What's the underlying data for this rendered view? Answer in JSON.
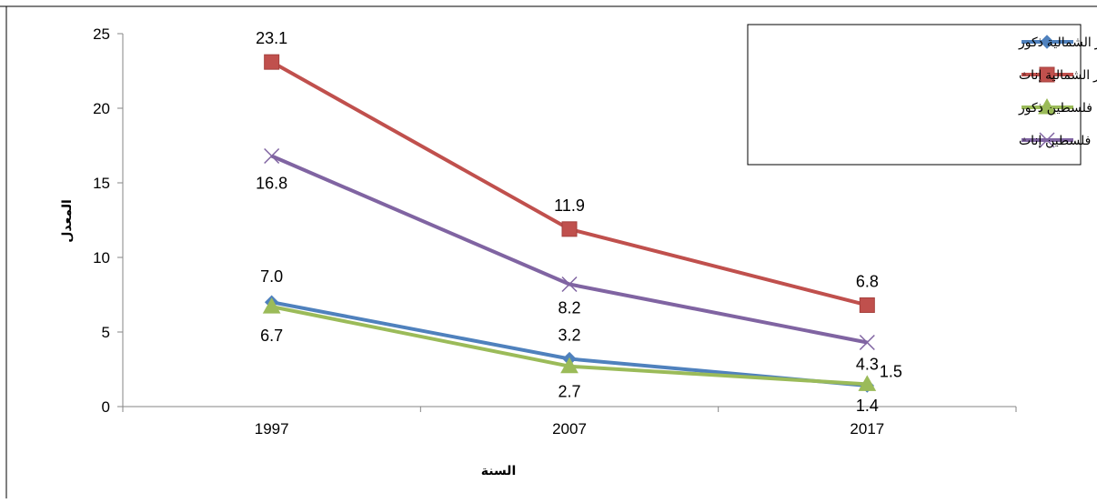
{
  "chart_data": {
    "type": "line",
    "categories": [
      "1997",
      "2007",
      "2017"
    ],
    "xlabel": "السنة",
    "ylabel": "المعدل",
    "ylim": [
      0,
      25
    ],
    "yticks": [
      "0",
      "5",
      "10",
      "15",
      "20",
      "25"
    ],
    "grid": false,
    "legend_position": "top-right",
    "series": [
      {
        "name": "محافظة طوباس والأغوار الشمالية ذكور",
        "color": "#4F81BD",
        "marker": "diamond",
        "values": [
          7.0,
          3.2,
          1.4
        ],
        "labels": [
          "7.0",
          "3.2",
          "1.4"
        ]
      },
      {
        "name": "محافظة طوباس والأغوار الشمالية إناث",
        "color": "#C0504D",
        "marker": "square",
        "values": [
          23.1,
          11.9,
          6.8
        ],
        "labels": [
          "23.1",
          "11.9",
          "6.8"
        ]
      },
      {
        "name": "فلسطين ذكور",
        "color": "#9BBB59",
        "marker": "triangle",
        "values": [
          6.7,
          2.7,
          1.5
        ],
        "labels": [
          "6.7",
          "2.7",
          "1.5"
        ]
      },
      {
        "name": "فلسطين إناث",
        "color": "#8064A2",
        "marker": "x",
        "values": [
          16.8,
          8.2,
          4.3
        ],
        "labels": [
          "16.8",
          "8.2",
          "4.3"
        ]
      }
    ]
  }
}
